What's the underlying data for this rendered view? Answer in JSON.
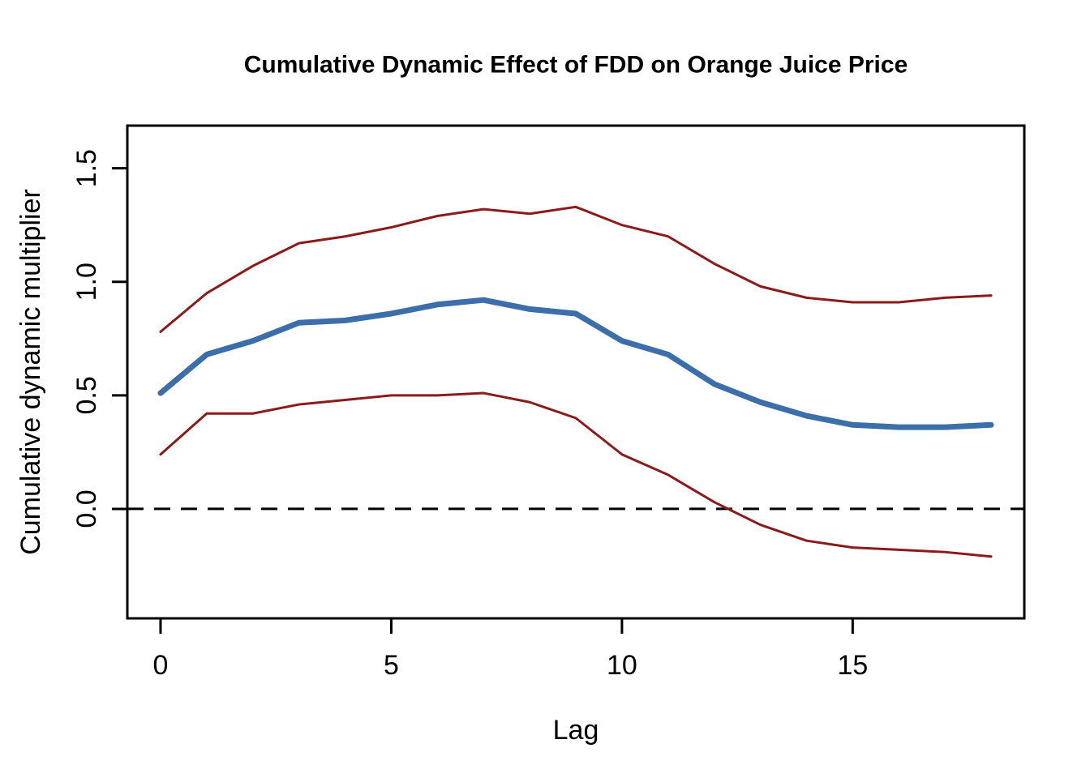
{
  "figure": {
    "background_color": "#ffffff",
    "axis_color": "#000000"
  },
  "chart_data": {
    "type": "line",
    "title": "Cumulative Dynamic Effect of FDD on Orange Juice Price",
    "xlabel": "Lag",
    "ylabel": "Cumulative dynamic multiplier",
    "x": [
      0,
      1,
      2,
      3,
      4,
      5,
      6,
      7,
      8,
      9,
      10,
      11,
      12,
      13,
      14,
      15,
      16,
      17,
      18
    ],
    "series": [
      {
        "name": "upper_band",
        "color": "#8B1A1A",
        "width": 3,
        "values": [
          0.78,
          0.95,
          1.07,
          1.17,
          1.2,
          1.24,
          1.29,
          1.32,
          1.3,
          1.33,
          1.25,
          1.2,
          1.08,
          0.98,
          0.93,
          0.91,
          0.91,
          0.93,
          0.94
        ]
      },
      {
        "name": "cumulative_multiplier",
        "color": "#3C6EAA",
        "width": 7,
        "values": [
          0.51,
          0.68,
          0.74,
          0.82,
          0.83,
          0.86,
          0.9,
          0.92,
          0.88,
          0.86,
          0.74,
          0.68,
          0.55,
          0.47,
          0.41,
          0.37,
          0.36,
          0.36,
          0.37
        ]
      },
      {
        "name": "lower_band",
        "color": "#8B1A1A",
        "width": 3,
        "values": [
          0.24,
          0.42,
          0.42,
          0.46,
          0.48,
          0.5,
          0.5,
          0.51,
          0.47,
          0.4,
          0.24,
          0.15,
          0.03,
          -0.07,
          -0.14,
          -0.17,
          -0.18,
          -0.19,
          -0.21
        ]
      }
    ],
    "hline": {
      "y": 0,
      "style": "dashed",
      "color": "#000000"
    },
    "xlim": [
      -0.72,
      18.72
    ],
    "ylim": [
      -0.482,
      1.688
    ],
    "xticks": {
      "values": [
        0,
        5,
        10,
        15
      ],
      "labels": [
        "0",
        "5",
        "10",
        "15"
      ]
    },
    "yticks": {
      "values": [
        0.0,
        0.5,
        1.0,
        1.5
      ],
      "labels": [
        "0.0",
        "0.5",
        "1.0",
        "1.5"
      ]
    },
    "grid": false,
    "legend": null
  }
}
